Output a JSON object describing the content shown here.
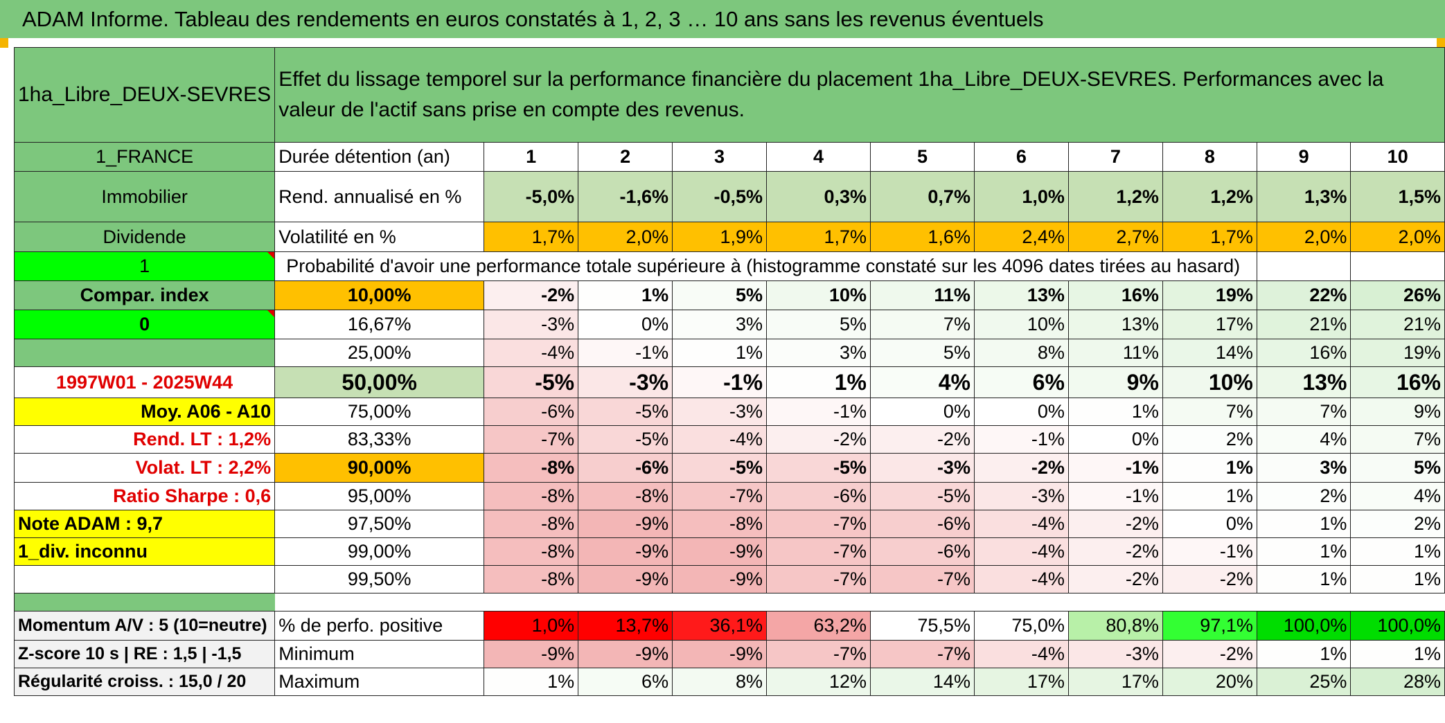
{
  "title": "ADAM Informe. Tableau des rendements en euros constatés à 1, 2, 3 … 10 ans sans les revenus éventuels",
  "asset_name": "1ha_Libre_DEUX-SEVRES",
  "description": "Effet du lissage temporel sur la performance financière du placement 1ha_Libre_DEUX-SEVRES. Performances avec la valeur de l'actif sans prise en compte des revenus.",
  "left": {
    "country": "1_FRANCE",
    "category": "Immobilier",
    "div_label": "Dividende",
    "flag1": "1",
    "compar": "Compar. index",
    "flag0": "0",
    "period": "1997W01 - 2025W44",
    "moy": "Moy. A06 - A10",
    "rend_lt": "Rend. LT :   1,2%",
    "volat_lt": "Volat. LT :   2,2%",
    "sharpe": "Ratio Sharpe :   0,6",
    "note": "Note ADAM : 9,7",
    "div_status": "1_div. inconnu",
    "momentum": "Momentum A/V : 5 (10=neutre)",
    "zscore": "Z-score 10 s | RE : 1,5 | -1,5",
    "regularite": "Régularité croiss. : 15,0 / 20"
  },
  "labels": {
    "duree": "Durée détention (an)",
    "rend": "Rend. annualisé en %",
    "vol": "Volatilité en %",
    "proba": "Probabilité d'avoir une performance totale supérieure à (histogramme constaté sur les 4096 dates tirées au hasard)",
    "positive": "% de perfo. positive",
    "minimum": "Minimum",
    "maximum": "Maximum"
  },
  "years": [
    "1",
    "2",
    "3",
    "4",
    "5",
    "6",
    "7",
    "8",
    "9",
    "10"
  ],
  "rend": [
    "-5,0%",
    "-1,6%",
    "-0,5%",
    "0,3%",
    "0,7%",
    "1,0%",
    "1,2%",
    "1,2%",
    "1,3%",
    "1,5%"
  ],
  "vol": [
    "1,7%",
    "2,0%",
    "1,9%",
    "1,7%",
    "1,6%",
    "2,4%",
    "2,7%",
    "1,7%",
    "2,0%",
    "2,0%"
  ],
  "quantiles": [
    {
      "p": "10,00%",
      "v": [
        "-2%",
        "1%",
        "5%",
        "10%",
        "11%",
        "13%",
        "16%",
        "19%",
        "22%",
        "26%"
      ]
    },
    {
      "p": "16,67%",
      "v": [
        "-3%",
        "0%",
        "3%",
        "5%",
        "7%",
        "10%",
        "13%",
        "17%",
        "21%",
        "21%"
      ]
    },
    {
      "p": "25,00%",
      "v": [
        "-4%",
        "-1%",
        "1%",
        "3%",
        "5%",
        "8%",
        "11%",
        "14%",
        "16%",
        "19%"
      ]
    },
    {
      "p": "50,00%",
      "v": [
        "-5%",
        "-3%",
        "-1%",
        "1%",
        "4%",
        "6%",
        "9%",
        "10%",
        "13%",
        "16%"
      ]
    },
    {
      "p": "75,00%",
      "v": [
        "-6%",
        "-5%",
        "-3%",
        "-1%",
        "0%",
        "0%",
        "1%",
        "7%",
        "7%",
        "9%"
      ]
    },
    {
      "p": "83,33%",
      "v": [
        "-7%",
        "-5%",
        "-4%",
        "-2%",
        "-2%",
        "-1%",
        "0%",
        "2%",
        "4%",
        "7%"
      ]
    },
    {
      "p": "90,00%",
      "v": [
        "-8%",
        "-6%",
        "-5%",
        "-5%",
        "-3%",
        "-2%",
        "-1%",
        "1%",
        "3%",
        "5%"
      ]
    },
    {
      "p": "95,00%",
      "v": [
        "-8%",
        "-8%",
        "-7%",
        "-6%",
        "-5%",
        "-3%",
        "-1%",
        "1%",
        "2%",
        "4%"
      ]
    },
    {
      "p": "97,50%",
      "v": [
        "-8%",
        "-9%",
        "-8%",
        "-7%",
        "-6%",
        "-4%",
        "-2%",
        "0%",
        "1%",
        "2%"
      ]
    },
    {
      "p": "99,00%",
      "v": [
        "-8%",
        "-9%",
        "-9%",
        "-7%",
        "-6%",
        "-4%",
        "-2%",
        "-1%",
        "1%",
        "1%"
      ]
    },
    {
      "p": "99,50%",
      "v": [
        "-8%",
        "-9%",
        "-9%",
        "-7%",
        "-7%",
        "-4%",
        "-2%",
        "-2%",
        "1%",
        "1%"
      ]
    }
  ],
  "positive": [
    "1,0%",
    "13,7%",
    "36,1%",
    "63,2%",
    "75,5%",
    "75,0%",
    "80,8%",
    "97,1%",
    "100,0%",
    "100,0%"
  ],
  "minimum": [
    "-9%",
    "-9%",
    "-9%",
    "-7%",
    "-7%",
    "-4%",
    "-3%",
    "-2%",
    "1%",
    "1%"
  ],
  "maximum": [
    "1%",
    "6%",
    "8%",
    "12%",
    "14%",
    "17%",
    "17%",
    "20%",
    "25%",
    "28%"
  ],
  "colors": {
    "header_green": "#7dc77d",
    "light_green": "#c6e0b4",
    "orange": "#ffc000",
    "bright_green": "#00ff00",
    "yellow": "#ffff00",
    "red_text": "#e00000"
  }
}
